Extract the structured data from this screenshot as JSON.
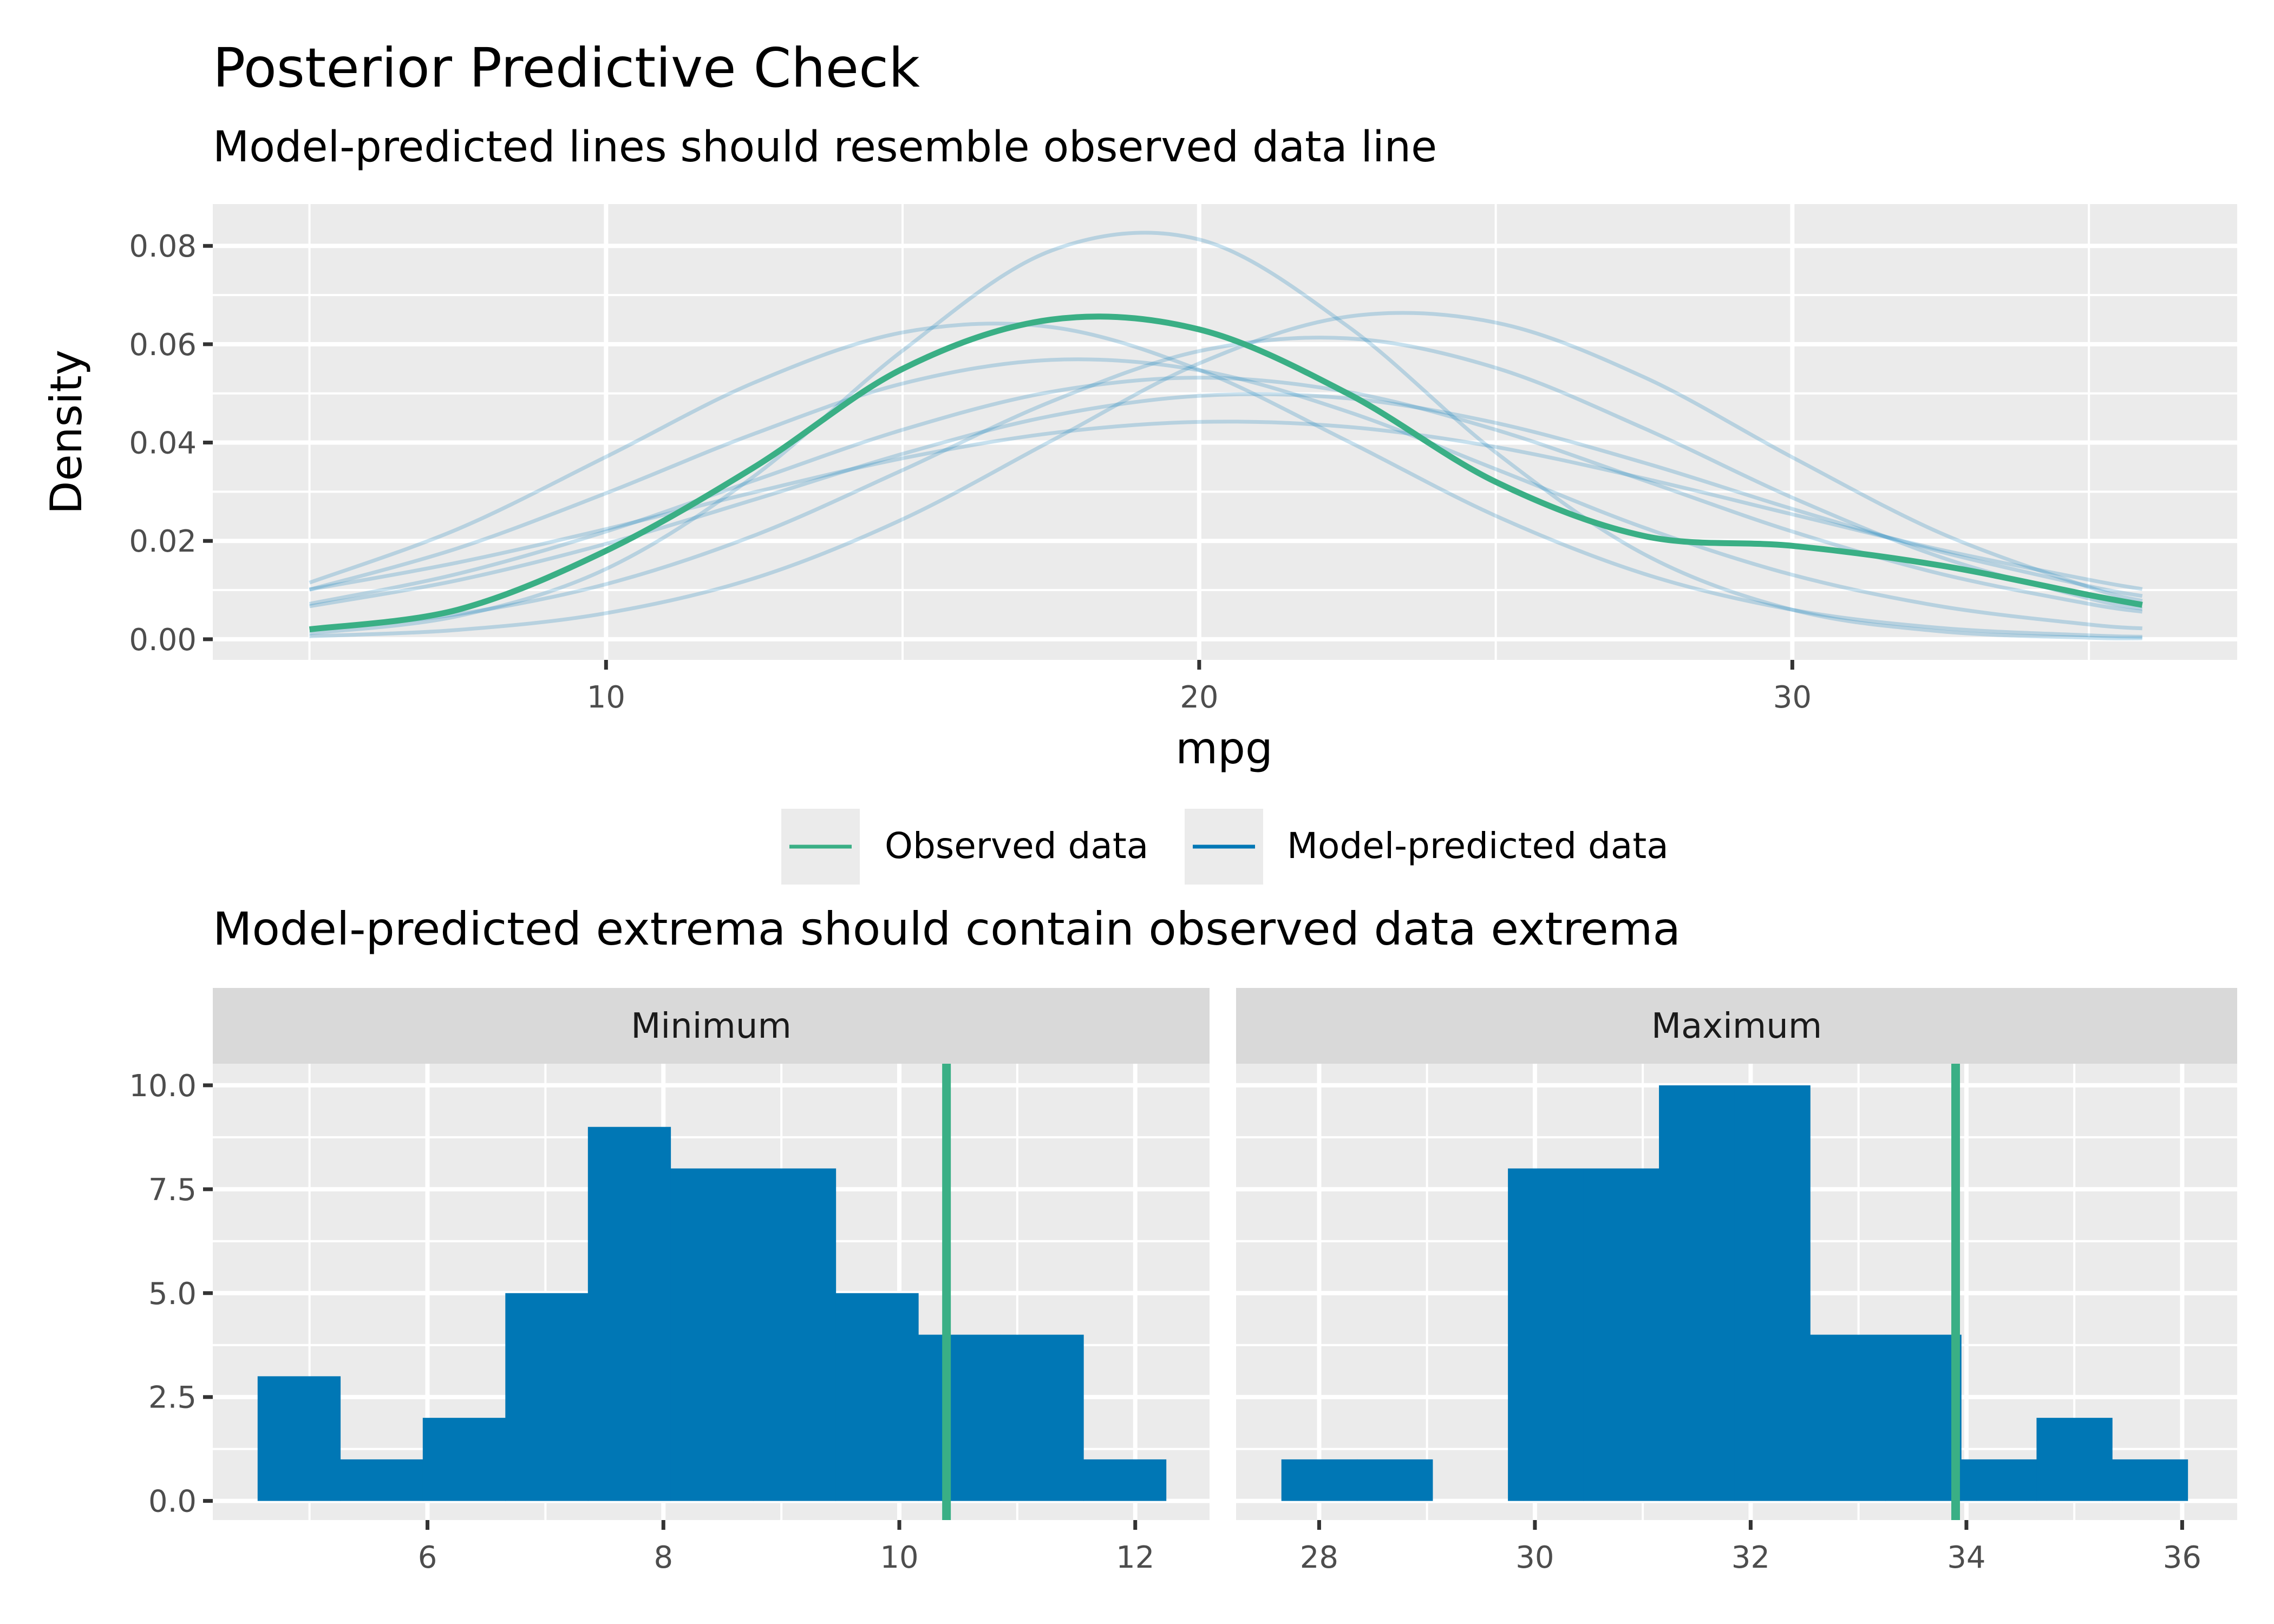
{
  "colors": {
    "observed": "#3aaf85",
    "predicted": "#0077b5",
    "panel_bg": "#ebebeb",
    "strip_bg": "#d9d9d9",
    "grid": "#ffffff"
  },
  "title": "Posterior Predictive Check",
  "subtitle": "Model-predicted lines should resemble observed data line",
  "legend": {
    "items": [
      {
        "label": "Observed data"
      },
      {
        "label": "Model-predicted data"
      }
    ],
    "position": "bottom"
  },
  "subtitle2": "Model-predicted extrema should contain observed data extrema",
  "chart_data": [
    {
      "type": "line",
      "title": "Posterior Predictive Check",
      "subtitle": "Model-predicted lines should resemble observed data line",
      "xlabel": "mpg",
      "ylabel": "Density",
      "xlim": [
        3.37,
        37.5
      ],
      "ylim": [
        -0.0042,
        0.0885
      ],
      "xticks": [
        10,
        20,
        30
      ],
      "xtick_labels": [
        "10",
        "20",
        "30"
      ],
      "yticks": [
        0,
        0.02,
        0.04,
        0.06,
        0.08
      ],
      "ytick_labels": [
        "0.00",
        "0.02",
        "0.04",
        "0.06",
        "0.08"
      ],
      "grid": true,
      "x": [
        5,
        7.5,
        10,
        12.5,
        15,
        17.5,
        20,
        22.5,
        25,
        27.5,
        30,
        32.5,
        35,
        35.9
      ],
      "series": [
        {
          "name": "Observed data",
          "values": [
            0.002,
            0.006,
            0.018,
            0.035,
            0.055,
            0.065,
            0.063,
            0.05,
            0.032,
            0.021,
            0.019,
            0.015,
            0.009,
            0.007
          ]
        },
        {
          "name": "Model-predicted data",
          "draws": [
            [
              0.0072,
              0.0133,
              0.0219,
              0.0323,
              0.0426,
              0.0503,
              0.0532,
              0.0503,
              0.0426,
              0.0323,
              0.0219,
              0.0133,
              0.0072,
              0.0056
            ],
            [
              0.0012,
              0.0047,
              0.0143,
              0.0332,
              0.0587,
              0.079,
              0.0813,
              0.0637,
              0.038,
              0.0173,
              0.006,
              0.0016,
              0.0003,
              0.0002
            ],
            [
              0.002,
              0.0051,
              0.0112,
              0.0211,
              0.0344,
              0.0483,
              0.0586,
              0.0612,
              0.0552,
              0.0429,
              0.0288,
              0.0167,
              0.0083,
              0.0062
            ],
            [
              0.0101,
              0.0185,
              0.0297,
              0.0418,
              0.052,
              0.0568,
              0.0547,
              0.0463,
              0.0346,
              0.0227,
              0.0131,
              0.0067,
              0.003,
              0.0022
            ],
            [
              0.0067,
              0.012,
              0.0194,
              0.0284,
              0.0377,
              0.0454,
              0.0495,
              0.049,
              0.044,
              0.0359,
              0.0265,
              0.0178,
              0.0108,
              0.0088
            ],
            [
              0.0006,
              0.0019,
              0.0053,
              0.0124,
              0.0244,
              0.0403,
              0.0561,
              0.0656,
              0.0644,
              0.0533,
              0.037,
              0.0216,
              0.0106,
              0.0078
            ],
            [
              0.0115,
              0.0224,
              0.0371,
              0.0522,
              0.0624,
              0.0635,
              0.0548,
              0.0403,
              0.0251,
              0.0133,
              0.006,
              0.0023,
              0.0008,
              0.0005
            ],
            [
              0.0101,
              0.0156,
              0.0224,
              0.0299,
              0.0368,
              0.0419,
              0.0442,
              0.0432,
              0.0391,
              0.0327,
              0.0254,
              0.0182,
              0.0121,
              0.0102
            ]
          ]
        }
      ]
    },
    {
      "type": "bar",
      "panel": "Minimum",
      "xlim": [
        4.18,
        12.63
      ],
      "ylim": [
        -0.46,
        10.52
      ],
      "xticks": [
        6,
        8,
        10,
        12
      ],
      "xtick_labels": [
        "6",
        "8",
        "10",
        "12"
      ],
      "yticks": [
        0,
        2.5,
        5,
        7.5,
        10
      ],
      "ytick_labels": [
        "0.0",
        "2.5",
        "5.0",
        "7.5",
        "10.0"
      ],
      "bin_edges": [
        4.56,
        5.26,
        5.96,
        6.66,
        7.36,
        8.06,
        8.76,
        9.46,
        10.16,
        10.86,
        11.56,
        12.26
      ],
      "counts": [
        3,
        1,
        2,
        5,
        9,
        8,
        8,
        5,
        4,
        4,
        1
      ],
      "observed": 10.4
    },
    {
      "type": "bar",
      "panel": "Maximum",
      "xlim": [
        27.23,
        36.51
      ],
      "ylim": [
        -0.46,
        10.52
      ],
      "xticks": [
        28,
        30,
        32,
        34,
        36
      ],
      "xtick_labels": [
        "28",
        "30",
        "32",
        "34",
        "36"
      ],
      "bin_edges": [
        27.65,
        28.35,
        29.05,
        29.75,
        30.45,
        31.15,
        31.85,
        32.55,
        33.25,
        33.95,
        34.65,
        35.35,
        36.05
      ],
      "counts": [
        1,
        1,
        0,
        8,
        8,
        10,
        10,
        4,
        4,
        1,
        2,
        1
      ],
      "observed": 33.9
    }
  ]
}
